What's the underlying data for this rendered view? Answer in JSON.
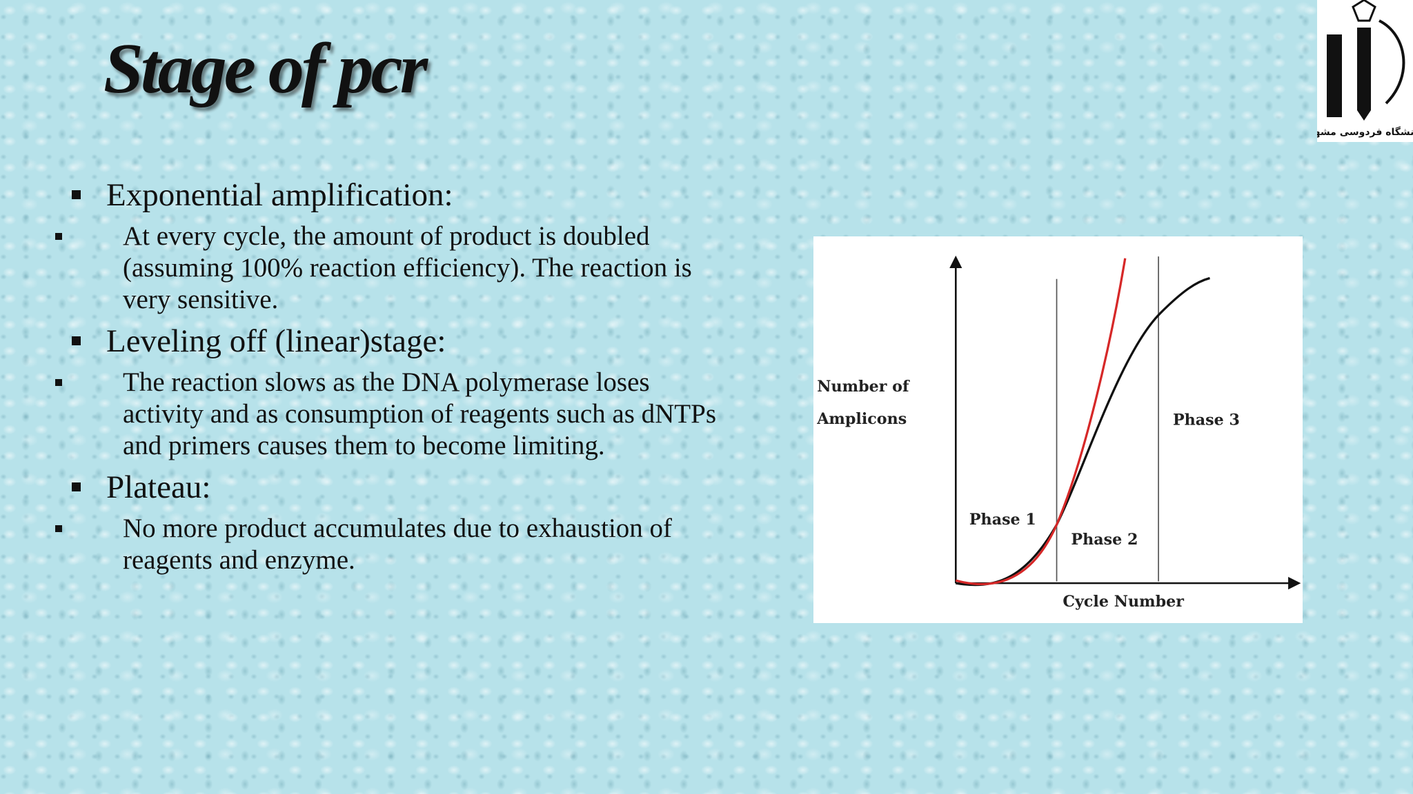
{
  "title": "Stage of pcr",
  "bullets": [
    {
      "heading": "Exponential amplification:",
      "points": [
        "At every cycle, the amount of product is doubled (assuming 100% reaction efficiency). The reaction is very sensitive."
      ]
    },
    {
      "heading": "Leveling off (linear)stage:",
      "points": [
        "The reaction slows as the DNA polymerase loses activity and as consumption of reagents such as dNTPs and  primers causes them to become limiting."
      ]
    },
    {
      "heading": "Plateau:",
      "points": [
        " No more product accumulates due to  exhaustion of reagents and enzyme."
      ]
    }
  ],
  "figure": {
    "y_label": [
      "Number of",
      "Amplicons"
    ],
    "x_label": "Cycle Number",
    "phases": [
      "Phase 1",
      "Phase 2",
      "Phase 3"
    ]
  },
  "logo": {
    "text": "دانشگاه فردوسی مشهد"
  }
}
